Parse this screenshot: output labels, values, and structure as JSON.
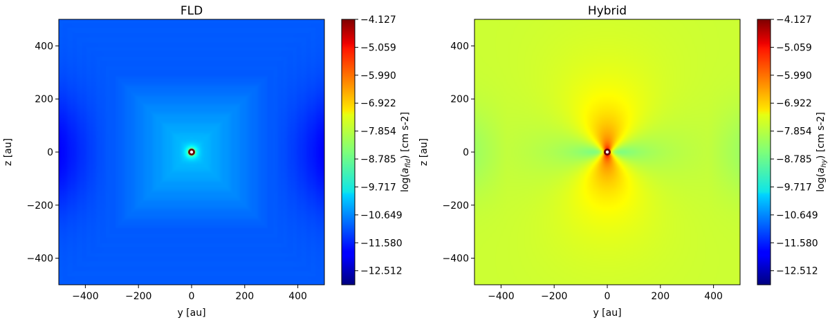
{
  "chart_data": [
    {
      "type": "heatmap",
      "title": "FLD",
      "xlabel": "y [au]",
      "ylabel": "z [au]",
      "xlim": [
        -500,
        500
      ],
      "ylim": [
        -500,
        500
      ],
      "xticks": [
        -400,
        -200,
        0,
        200,
        400
      ],
      "yticks": [
        -400,
        -200,
        0,
        200,
        400
      ],
      "xtick_labels": [
        "−400",
        "−200",
        "0",
        "200",
        "400"
      ],
      "ytick_labels": [
        "−400",
        "−200",
        "0",
        "200",
        "400"
      ],
      "colorbar": {
        "label": "log(a_fld) [cm s-2]",
        "label_parts": {
          "prefix": "log(",
          "base": "a",
          "sub": "fld",
          "suffix": ") [cm s-2]"
        },
        "range": [
          -12.98,
          -4.127
        ],
        "ticks": [
          -4.127,
          -5.059,
          -5.99,
          -6.922,
          -7.854,
          -8.785,
          -9.717,
          -10.649,
          -11.58,
          -12.512
        ],
        "tick_labels": [
          "−4.127",
          "−5.059",
          "−5.990",
          "−6.922",
          "−7.854",
          "−8.785",
          "−9.717",
          "−10.649",
          "−11.580",
          "−12.512"
        ],
        "colormap": "jet"
      },
      "field": {
        "background_value": -11.1,
        "edge_min_value": -11.9,
        "central_box_value": -10.1,
        "central_peak_value": -4.127,
        "central_structure": "square"
      },
      "source_marker": {
        "y": 0,
        "z": 0
      }
    },
    {
      "type": "heatmap",
      "title": "Hybrid",
      "xlabel": "y [au]",
      "ylabel": "z [au]",
      "xlim": [
        -500,
        500
      ],
      "ylim": [
        -500,
        500
      ],
      "xticks": [
        -400,
        -200,
        0,
        200,
        400
      ],
      "yticks": [
        -400,
        -200,
        0,
        200,
        400
      ],
      "xtick_labels": [
        "−400",
        "−200",
        "0",
        "200",
        "400"
      ],
      "ytick_labels": [
        "−400",
        "−200",
        "0",
        "200",
        "400"
      ],
      "colorbar": {
        "label": "log(a_hy) [cm s-2]",
        "label_parts": {
          "prefix": "log(",
          "base": "a",
          "sub": "hy",
          "suffix": ") [cm s-2]"
        },
        "range": [
          -12.98,
          -4.127
        ],
        "ticks": [
          -4.127,
          -5.059,
          -5.99,
          -6.922,
          -7.854,
          -8.785,
          -9.717,
          -10.649,
          -11.58,
          -12.512
        ],
        "tick_labels": [
          "−4.127",
          "−5.059",
          "−5.990",
          "−6.922",
          "−7.854",
          "−8.785",
          "−9.717",
          "−10.649",
          "−11.580",
          "−12.512"
        ],
        "colormap": "jet"
      },
      "field": {
        "background_value": -7.9,
        "pole_value": -6.0,
        "equator_value": -8.9,
        "central_peak_value": -4.127,
        "central_structure": "bipolar"
      },
      "source_marker": {
        "y": 0,
        "z": 0
      }
    }
  ]
}
